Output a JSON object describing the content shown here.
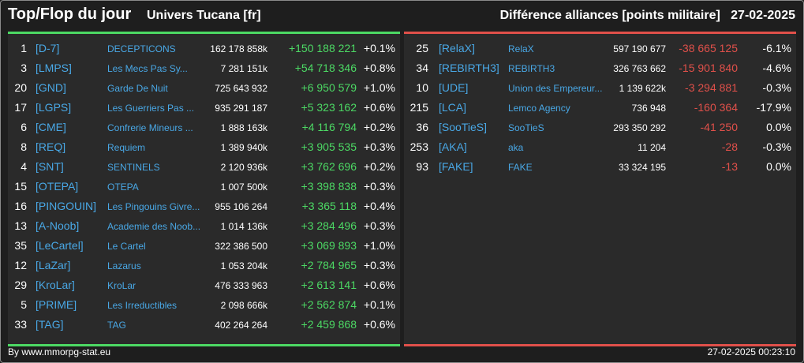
{
  "header": {
    "title": "Top/Flop du jour",
    "universe": "Univers Tucana [fr]",
    "metric": "Différence alliances [points militaire]",
    "date": "27-02-2025"
  },
  "colors": {
    "accent_top": "#4cd964",
    "accent_flop": "#e0504a",
    "link": "#49a8e6"
  },
  "top": [
    {
      "rank": "1",
      "tag": "[D-7]",
      "name": "DECEPTICONS",
      "points": "162 178 858k",
      "diff": "+150 188 221",
      "pct": "+0.1%"
    },
    {
      "rank": "3",
      "tag": "[LMPS]",
      "name": "Les Mecs Pas Sy...",
      "points": "7 281 151k",
      "diff": "+54 718 346",
      "pct": "+0.8%"
    },
    {
      "rank": "20",
      "tag": "[GND]",
      "name": "Garde De Nuit",
      "points": "725 643 932",
      "diff": "+6 950 579",
      "pct": "+1.0%"
    },
    {
      "rank": "17",
      "tag": "[LGPS]",
      "name": "Les Guerriers Pas ...",
      "points": "935 291 187",
      "diff": "+5 323 162",
      "pct": "+0.6%"
    },
    {
      "rank": "6",
      "tag": "[CME]",
      "name": "Confrerie Mineurs ...",
      "points": "1 888 163k",
      "diff": "+4 116 794",
      "pct": "+0.2%"
    },
    {
      "rank": "8",
      "tag": "[REQ]",
      "name": "Requiem",
      "points": "1 389 940k",
      "diff": "+3 905 535",
      "pct": "+0.3%"
    },
    {
      "rank": "4",
      "tag": "[SNT]",
      "name": "SENTINELS",
      "points": "2 120 936k",
      "diff": "+3 762 696",
      "pct": "+0.2%"
    },
    {
      "rank": "15",
      "tag": "[OTEPA]",
      "name": "OTEPA",
      "points": "1 007 500k",
      "diff": "+3 398 838",
      "pct": "+0.3%"
    },
    {
      "rank": "16",
      "tag": "[PINGOUIN]",
      "name": "Les Pingouins Givre...",
      "points": "955 106 264",
      "diff": "+3 365 118",
      "pct": "+0.4%"
    },
    {
      "rank": "13",
      "tag": "[A-Noob]",
      "name": "Academie des Noob...",
      "points": "1 014 136k",
      "diff": "+3 284 496",
      "pct": "+0.3%"
    },
    {
      "rank": "35",
      "tag": "[LeCartel]",
      "name": "Le Cartel",
      "points": "322 386 500",
      "diff": "+3 069 893",
      "pct": "+1.0%"
    },
    {
      "rank": "12",
      "tag": "[LaZar]",
      "name": "Lazarus",
      "points": "1 053 204k",
      "diff": "+2 784 965",
      "pct": "+0.3%"
    },
    {
      "rank": "29",
      "tag": "[KroLar]",
      "name": "KroLar",
      "points": "476 333 963",
      "diff": "+2 613 141",
      "pct": "+0.6%"
    },
    {
      "rank": "5",
      "tag": "[PRIME]",
      "name": "Les Irreductibles",
      "points": "2 098 666k",
      "diff": "+2 562 874",
      "pct": "+0.1%"
    },
    {
      "rank": "33",
      "tag": "[TAG]",
      "name": "TAG",
      "points": "402 264 264",
      "diff": "+2 459 868",
      "pct": "+0.6%"
    }
  ],
  "flop": [
    {
      "rank": "25",
      "tag": "[RelaX]",
      "name": "RelaX",
      "points": "597 190 677",
      "diff": "-38 665 125",
      "pct": "-6.1%"
    },
    {
      "rank": "34",
      "tag": "[REBIRTH3]",
      "name": "REBIRTH3",
      "points": "326 763 662",
      "diff": "-15 901 840",
      "pct": "-4.6%"
    },
    {
      "rank": "10",
      "tag": "[UDE]",
      "name": "Union des Empereur...",
      "points": "1 139 622k",
      "diff": "-3 294 881",
      "pct": "-0.3%"
    },
    {
      "rank": "215",
      "tag": "[LCA]",
      "name": "Lemco Agency",
      "points": "736 948",
      "diff": "-160 364",
      "pct": "-17.9%"
    },
    {
      "rank": "36",
      "tag": "[SooTieS]",
      "name": "SooTieS",
      "points": "293 350 292",
      "diff": "-41 250",
      "pct": "0.0%"
    },
    {
      "rank": "253",
      "tag": "[AKA]",
      "name": "aka",
      "points": "11 204",
      "diff": "-28",
      "pct": "-0.3%"
    },
    {
      "rank": "93",
      "tag": "[FAKE]",
      "name": "FAKE",
      "points": "33 324 195",
      "diff": "-13",
      "pct": "0.0%"
    }
  ],
  "footer": {
    "credit": "By www.mmorpg-stat.eu",
    "timestamp": "27-02-2025 00:23:10"
  }
}
